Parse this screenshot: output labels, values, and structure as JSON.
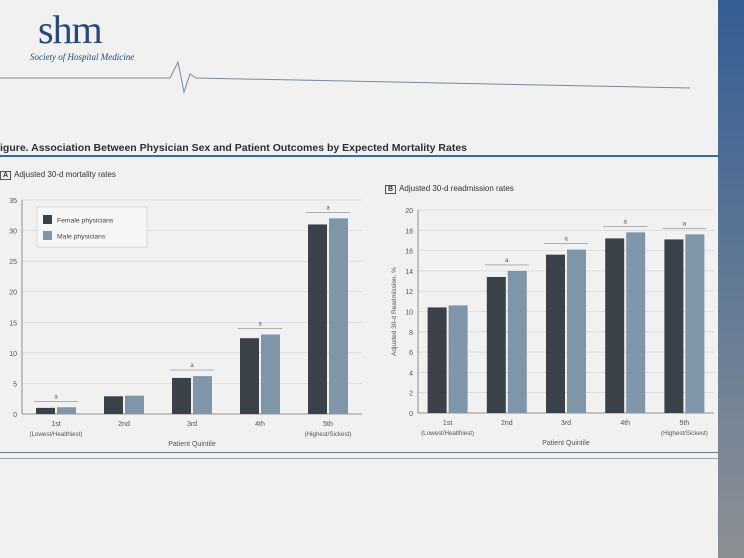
{
  "logo": {
    "text": "shm",
    "subtitle": "Society of Hospital Medicine"
  },
  "figure": {
    "title": "igure. Association Between Physician Sex and Patient Outcomes by Expected Mortality Rates"
  },
  "colors": {
    "female": "#3a4148",
    "male": "#7f95a8"
  },
  "chart_data": [
    {
      "type": "bar",
      "panel": "A",
      "title": "Adjusted 30-d mortality rates",
      "xlabel": "Patient Quintile",
      "ylabel": "",
      "categories": [
        "1st",
        "2nd",
        "3rd",
        "4th",
        "5th"
      ],
      "category_sublabels": [
        "(Lowest/Healthiest)",
        "",
        "",
        "",
        "(Highest/Sickest)"
      ],
      "ylim": [
        0,
        35
      ],
      "yticks": [
        0,
        5,
        10,
        15,
        20,
        25,
        30,
        35
      ],
      "legend": "top-left",
      "series": [
        {
          "name": "Female physicians",
          "values": [
            1.0,
            2.9,
            5.9,
            12.4,
            31.0
          ]
        },
        {
          "name": "Male physicians",
          "values": [
            1.1,
            3.0,
            6.2,
            13.0,
            32.0
          ]
        }
      ],
      "significance": [
        "a",
        "",
        "a",
        "a",
        "a"
      ]
    },
    {
      "type": "bar",
      "panel": "B",
      "title": "Adjusted 30-d readmission rates",
      "xlabel": "Patient Quintile",
      "ylabel": "Adjusted 30-d Readmission, %",
      "categories": [
        "1st",
        "2nd",
        "3rd",
        "4th",
        "5th"
      ],
      "category_sublabels": [
        "(Lowest/Healthiest)",
        "",
        "",
        "",
        "(Highest/Sickest)"
      ],
      "ylim": [
        0,
        20
      ],
      "yticks": [
        0,
        2,
        4,
        6,
        8,
        10,
        12,
        14,
        16,
        18,
        20
      ],
      "series": [
        {
          "name": "Female physicians",
          "values": [
            10.4,
            13.4,
            15.6,
            17.2,
            17.1
          ]
        },
        {
          "name": "Male physicians",
          "values": [
            10.6,
            14.0,
            16.1,
            17.8,
            17.6
          ]
        }
      ],
      "significance": [
        "",
        "a",
        "a",
        "a",
        "a"
      ]
    }
  ]
}
